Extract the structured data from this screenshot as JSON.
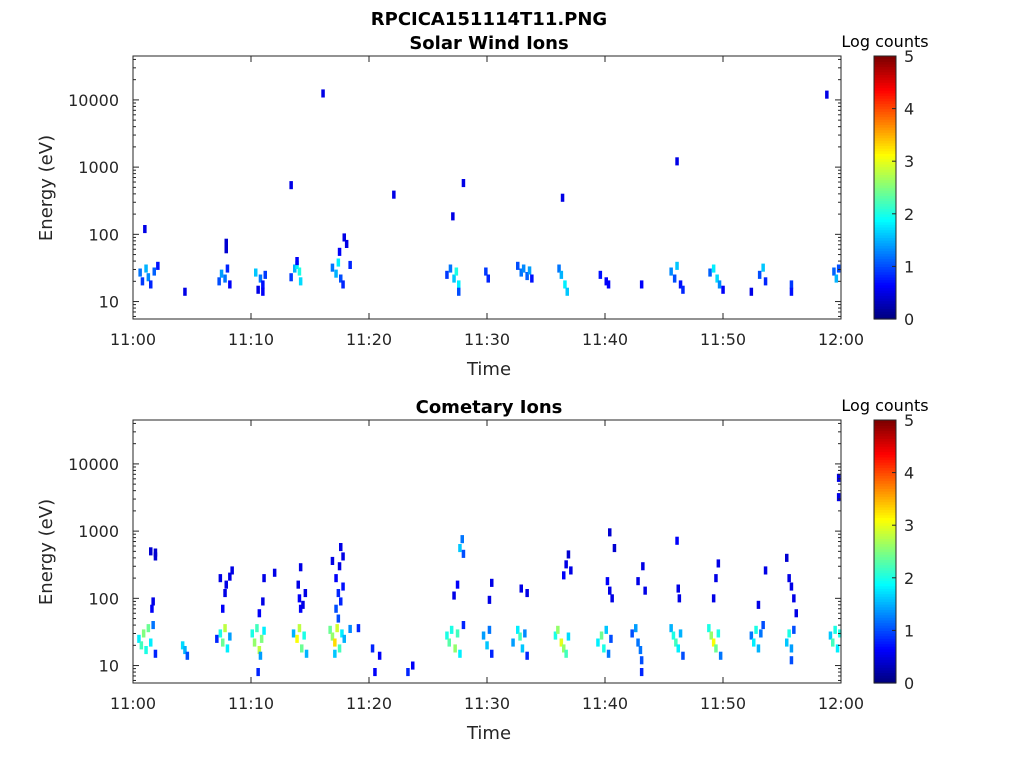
{
  "figure_title": "RPCICA151114T11.PNG",
  "colorbar": {
    "label": "Log counts",
    "ticks": [
      "0",
      "1",
      "2",
      "3",
      "4",
      "5"
    ],
    "range": [
      0,
      5
    ],
    "colormap": "jet"
  },
  "chart_data": [
    {
      "type": "heatmap",
      "title": "Solar Wind Ions",
      "xlabel": "Time",
      "ylabel": "Energy (eV)",
      "x_ticks": [
        "11:00",
        "11:10",
        "11:20",
        "11:30",
        "11:40",
        "11:50",
        "12:00"
      ],
      "y_ticks": [
        "10",
        "100",
        "1000",
        "10000"
      ],
      "y_scale": "log",
      "ylim": [
        5.5,
        45000
      ],
      "xlim_minutes": [
        0,
        60
      ],
      "cells": [
        [
          0.6,
          27,
          1.2
        ],
        [
          0.8,
          20,
          0.9
        ],
        [
          1.1,
          31,
          1.5
        ],
        [
          1.3,
          23,
          1.3
        ],
        [
          1.5,
          18,
          0.8
        ],
        [
          1.8,
          28,
          1.1
        ],
        [
          2.1,
          34,
          0.7
        ],
        [
          1.0,
          120,
          0.5
        ],
        [
          4.4,
          14,
          0.5
        ],
        [
          7.3,
          20,
          1.0
        ],
        [
          7.5,
          26,
          1.4
        ],
        [
          7.8,
          22,
          1.2
        ],
        [
          8.0,
          31,
          0.8
        ],
        [
          8.2,
          18,
          0.6
        ],
        [
          7.9,
          60,
          0.4
        ],
        [
          7.9,
          75,
          0.4
        ],
        [
          10.4,
          27,
          1.6
        ],
        [
          10.6,
          15,
          0.5
        ],
        [
          10.8,
          22,
          1.2
        ],
        [
          11.0,
          18,
          0.7
        ],
        [
          11.2,
          25,
          0.9
        ],
        [
          11.0,
          14,
          0.6
        ],
        [
          13.4,
          23,
          0.9
        ],
        [
          13.7,
          31,
          1.5
        ],
        [
          13.9,
          35,
          1.8
        ],
        [
          14.1,
          28,
          2.0
        ],
        [
          14.2,
          20,
          1.7
        ],
        [
          13.9,
          40,
          0.6
        ],
        [
          13.4,
          540,
          0.5
        ],
        [
          16.1,
          12500,
          0.5
        ],
        [
          16.9,
          32,
          1.2
        ],
        [
          17.2,
          26,
          1.5
        ],
        [
          17.4,
          38,
          1.8
        ],
        [
          17.6,
          22,
          1.0
        ],
        [
          17.8,
          18,
          0.8
        ],
        [
          17.5,
          55,
          0.6
        ],
        [
          17.9,
          90,
          0.5
        ],
        [
          18.1,
          72,
          0.5
        ],
        [
          18.4,
          35,
          0.8
        ],
        [
          22.1,
          390,
          0.5
        ],
        [
          26.6,
          25,
          0.9
        ],
        [
          26.9,
          31,
          1.2
        ],
        [
          27.2,
          22,
          1.6
        ],
        [
          27.4,
          28,
          2.0
        ],
        [
          27.6,
          18,
          1.8
        ],
        [
          27.6,
          14,
          1.0
        ],
        [
          27.1,
          185,
          0.5
        ],
        [
          28.0,
          580,
          0.5
        ],
        [
          29.9,
          28,
          0.9
        ],
        [
          30.1,
          22,
          0.8
        ],
        [
          32.6,
          34,
          1.0
        ],
        [
          32.9,
          27,
          1.2
        ],
        [
          33.1,
          31,
          1.3
        ],
        [
          33.4,
          24,
          1.1
        ],
        [
          33.6,
          29,
          1.4
        ],
        [
          33.8,
          22,
          0.7
        ],
        [
          36.1,
          31,
          1.2
        ],
        [
          36.3,
          25,
          1.5
        ],
        [
          36.6,
          18,
          1.8
        ],
        [
          36.8,
          14,
          1.6
        ],
        [
          36.4,
          350,
          0.5
        ],
        [
          39.6,
          25,
          0.7
        ],
        [
          40.1,
          20,
          0.6
        ],
        [
          40.3,
          18,
          0.6
        ],
        [
          43.1,
          18,
          0.6
        ],
        [
          45.6,
          28,
          1.3
        ],
        [
          45.9,
          22,
          1.0
        ],
        [
          46.1,
          34,
          1.6
        ],
        [
          46.4,
          18,
          0.7
        ],
        [
          46.6,
          15,
          0.8
        ],
        [
          46.1,
          1220,
          0.5
        ],
        [
          48.9,
          27,
          1.1
        ],
        [
          49.2,
          31,
          1.8
        ],
        [
          49.5,
          22,
          1.7
        ],
        [
          49.7,
          18,
          1.3
        ],
        [
          50.0,
          15,
          0.6
        ],
        [
          52.4,
          14,
          0.5
        ],
        [
          53.1,
          25,
          1.0
        ],
        [
          53.4,
          32,
          1.6
        ],
        [
          53.6,
          20,
          0.8
        ],
        [
          55.8,
          18,
          0.9
        ],
        [
          55.8,
          14,
          0.7
        ],
        [
          58.8,
          12000,
          0.5
        ],
        [
          59.4,
          28,
          1.1
        ],
        [
          59.6,
          22,
          1.5
        ],
        [
          59.8,
          31,
          1.0
        ]
      ]
    },
    {
      "type": "heatmap",
      "title": "Cometary Ions",
      "xlabel": "Time",
      "ylabel": "Energy (eV)",
      "x_ticks": [
        "11:00",
        "11:10",
        "11:20",
        "11:30",
        "11:40",
        "11:50",
        "12:00"
      ],
      "y_ticks": [
        "10",
        "100",
        "1000",
        "10000"
      ],
      "y_scale": "log",
      "ylim": [
        5.5,
        45000
      ],
      "xlim_minutes": [
        0,
        60
      ],
      "cells": [
        [
          0.5,
          25,
          1.8
        ],
        [
          0.7,
          20,
          2.2
        ],
        [
          0.9,
          30,
          2.5
        ],
        [
          1.1,
          17,
          2.0
        ],
        [
          1.3,
          36,
          2.4
        ],
        [
          1.5,
          22,
          1.8
        ],
        [
          1.7,
          40,
          1.2
        ],
        [
          1.9,
          15,
          0.8
        ],
        [
          1.6,
          70,
          0.6
        ],
        [
          1.7,
          90,
          0.5
        ],
        [
          1.5,
          500,
          0.4
        ],
        [
          1.9,
          480,
          0.4
        ],
        [
          1.9,
          420,
          0.4
        ],
        [
          4.2,
          20,
          1.7
        ],
        [
          4.4,
          17,
          1.5
        ],
        [
          4.6,
          14,
          1.0
        ],
        [
          7.1,
          25,
          0.8
        ],
        [
          7.4,
          30,
          2.0
        ],
        [
          7.6,
          22,
          2.4
        ],
        [
          7.8,
          36,
          2.8
        ],
        [
          8.0,
          18,
          1.8
        ],
        [
          8.2,
          27,
          1.4
        ],
        [
          7.8,
          120,
          0.5
        ],
        [
          7.9,
          160,
          0.5
        ],
        [
          8.2,
          210,
          0.5
        ],
        [
          8.4,
          260,
          0.5
        ],
        [
          7.4,
          200,
          0.5
        ],
        [
          7.6,
          70,
          0.6
        ],
        [
          10.1,
          30,
          2.0
        ],
        [
          10.3,
          22,
          2.6
        ],
        [
          10.5,
          36,
          2.2
        ],
        [
          10.7,
          17,
          2.8
        ],
        [
          10.9,
          25,
          2.5
        ],
        [
          11.1,
          33,
          1.8
        ],
        [
          10.8,
          14,
          1.4
        ],
        [
          10.7,
          60,
          0.6
        ],
        [
          11.0,
          90,
          0.5
        ],
        [
          11.1,
          200,
          0.5
        ],
        [
          10.6,
          8,
          0.8
        ],
        [
          12.0,
          240,
          0.5
        ],
        [
          13.6,
          30,
          1.5
        ],
        [
          13.9,
          25,
          3.1
        ],
        [
          14.1,
          36,
          2.8
        ],
        [
          14.3,
          18,
          2.4
        ],
        [
          14.5,
          28,
          2.0
        ],
        [
          14.7,
          15,
          1.5
        ],
        [
          14.1,
          100,
          0.6
        ],
        [
          14.2,
          70,
          0.6
        ],
        [
          14.0,
          160,
          0.5
        ],
        [
          14.2,
          290,
          0.5
        ],
        [
          14.4,
          80,
          0.5
        ],
        [
          14.6,
          120,
          0.5
        ],
        [
          16.7,
          34,
          2.4
        ],
        [
          16.9,
          27,
          2.6
        ],
        [
          17.1,
          22,
          3.3
        ],
        [
          17.3,
          36,
          2.9
        ],
        [
          17.5,
          18,
          2.2
        ],
        [
          17.7,
          30,
          1.8
        ],
        [
          17.9,
          25,
          1.5
        ],
        [
          17.2,
          70,
          1.0
        ],
        [
          17.4,
          120,
          0.8
        ],
        [
          17.6,
          90,
          0.8
        ],
        [
          17.8,
          150,
          0.7
        ],
        [
          17.2,
          200,
          0.6
        ],
        [
          17.5,
          300,
          0.5
        ],
        [
          17.8,
          420,
          0.5
        ],
        [
          17.6,
          580,
          0.5
        ],
        [
          16.9,
          360,
          0.5
        ],
        [
          17.4,
          50,
          1.0
        ],
        [
          17.1,
          15,
          1.6
        ],
        [
          18.4,
          35,
          1.3
        ],
        [
          19.1,
          36,
          0.8
        ],
        [
          20.3,
          18,
          0.8
        ],
        [
          20.5,
          8,
          0.6
        ],
        [
          20.9,
          14,
          0.6
        ],
        [
          23.3,
          8,
          0.8
        ],
        [
          23.7,
          10,
          0.6
        ],
        [
          26.6,
          28,
          2.0
        ],
        [
          26.8,
          22,
          2.3
        ],
        [
          27.0,
          34,
          2.0
        ],
        [
          27.3,
          18,
          2.6
        ],
        [
          27.5,
          30,
          2.2
        ],
        [
          27.7,
          15,
          1.8
        ],
        [
          27.7,
          560,
          1.6
        ],
        [
          27.9,
          760,
          1.2
        ],
        [
          28.0,
          460,
          1.0
        ],
        [
          27.5,
          160,
          0.6
        ],
        [
          27.2,
          110,
          0.5
        ],
        [
          28.0,
          40,
          0.8
        ],
        [
          29.7,
          28,
          1.4
        ],
        [
          30.0,
          20,
          1.6
        ],
        [
          30.2,
          34,
          1.2
        ],
        [
          30.4,
          15,
          0.8
        ],
        [
          30.4,
          170,
          0.5
        ],
        [
          30.2,
          95,
          0.5
        ],
        [
          32.2,
          22,
          1.4
        ],
        [
          32.6,
          34,
          1.8
        ],
        [
          32.8,
          27,
          2.2
        ],
        [
          33.0,
          18,
          1.6
        ],
        [
          33.2,
          30,
          1.3
        ],
        [
          33.4,
          14,
          0.8
        ],
        [
          32.9,
          140,
          0.5
        ],
        [
          33.4,
          120,
          0.5
        ],
        [
          35.8,
          28,
          2.0
        ],
        [
          36.0,
          34,
          2.6
        ],
        [
          36.3,
          22,
          3.0
        ],
        [
          36.5,
          18,
          2.6
        ],
        [
          36.7,
          15,
          2.2
        ],
        [
          36.9,
          27,
          1.7
        ],
        [
          36.5,
          220,
          0.6
        ],
        [
          36.7,
          320,
          0.5
        ],
        [
          37.1,
          260,
          0.5
        ],
        [
          36.9,
          450,
          0.4
        ],
        [
          39.4,
          22,
          1.8
        ],
        [
          39.7,
          28,
          2.4
        ],
        [
          39.9,
          18,
          2.0
        ],
        [
          40.1,
          34,
          1.6
        ],
        [
          40.3,
          15,
          1.2
        ],
        [
          40.5,
          25,
          1.0
        ],
        [
          40.2,
          180,
          0.6
        ],
        [
          40.4,
          130,
          0.5
        ],
        [
          40.6,
          100,
          0.5
        ],
        [
          40.8,
          560,
          0.4
        ],
        [
          40.4,
          960,
          0.4
        ],
        [
          42.3,
          30,
          1.0
        ],
        [
          42.6,
          36,
          1.4
        ],
        [
          42.8,
          22,
          1.2
        ],
        [
          43.0,
          17,
          1.2
        ],
        [
          43.1,
          12,
          1.0
        ],
        [
          43.1,
          8,
          0.8
        ],
        [
          42.8,
          180,
          0.5
        ],
        [
          43.2,
          300,
          0.5
        ],
        [
          43.4,
          130,
          0.5
        ],
        [
          45.6,
          36,
          1.5
        ],
        [
          45.8,
          28,
          2.0
        ],
        [
          46.0,
          22,
          2.2
        ],
        [
          46.2,
          18,
          1.8
        ],
        [
          46.4,
          30,
          1.5
        ],
        [
          46.6,
          14,
          1.0
        ],
        [
          46.2,
          140,
          0.5
        ],
        [
          46.3,
          100,
          0.5
        ],
        [
          46.1,
          720,
          0.6
        ],
        [
          48.8,
          36,
          2.0
        ],
        [
          49.0,
          28,
          2.6
        ],
        [
          49.2,
          22,
          3.1
        ],
        [
          49.4,
          18,
          2.4
        ],
        [
          49.6,
          30,
          2.0
        ],
        [
          49.8,
          14,
          1.2
        ],
        [
          49.4,
          200,
          0.5
        ],
        [
          49.6,
          330,
          0.5
        ],
        [
          49.2,
          100,
          0.5
        ],
        [
          52.4,
          28,
          1.2
        ],
        [
          52.6,
          22,
          1.8
        ],
        [
          52.8,
          34,
          2.0
        ],
        [
          53.0,
          18,
          1.5
        ],
        [
          53.2,
          30,
          1.2
        ],
        [
          53.4,
          40,
          1.0
        ],
        [
          53.0,
          80,
          0.5
        ],
        [
          53.6,
          260,
          0.5
        ],
        [
          55.4,
          22,
          1.6
        ],
        [
          55.6,
          30,
          2.0
        ],
        [
          55.8,
          18,
          1.4
        ],
        [
          56.0,
          34,
          1.0
        ],
        [
          55.8,
          12,
          1.0
        ],
        [
          55.6,
          200,
          0.5
        ],
        [
          55.8,
          150,
          0.5
        ],
        [
          56.0,
          100,
          0.5
        ],
        [
          55.4,
          400,
          0.4
        ],
        [
          56.2,
          60,
          0.5
        ],
        [
          59.1,
          28,
          1.6
        ],
        [
          59.3,
          22,
          2.2
        ],
        [
          59.5,
          34,
          2.0
        ],
        [
          59.7,
          18,
          1.8
        ],
        [
          59.9,
          30,
          2.0
        ],
        [
          59.8,
          3200,
          0.5
        ],
        [
          59.8,
          6200,
          0.5
        ]
      ]
    }
  ]
}
